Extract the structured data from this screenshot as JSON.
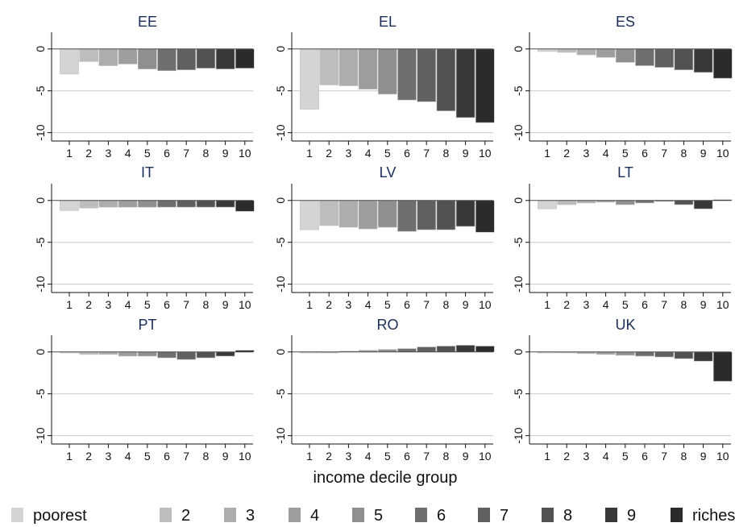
{
  "chart_data": {
    "type": "bar",
    "xlabel": "income decile group",
    "ylim": [
      -11,
      2
    ],
    "yticks": [
      0,
      -5,
      -10
    ],
    "categories": [
      "1",
      "2",
      "3",
      "4",
      "5",
      "6",
      "7",
      "8",
      "9",
      "10"
    ],
    "grid": true,
    "legend_position": "bottom",
    "legend": [
      "poorest",
      "2",
      "3",
      "4",
      "5",
      "6",
      "7",
      "8",
      "9",
      "richest"
    ],
    "colors": [
      "#d4d4d4",
      "#bdbdbd",
      "#adadad",
      "#9e9e9e",
      "#8f8f8f",
      "#6f6f6f",
      "#606060",
      "#525252",
      "#383838",
      "#2b2b2b"
    ],
    "panels": [
      {
        "title": "EE",
        "values": [
          -3.0,
          -1.5,
          -2.0,
          -1.8,
          -2.4,
          -2.6,
          -2.5,
          -2.3,
          -2.4,
          -2.3
        ]
      },
      {
        "title": "EL",
        "values": [
          -7.2,
          -4.3,
          -4.4,
          -4.8,
          -5.4,
          -6.1,
          -6.3,
          -7.4,
          -8.2,
          -8.8
        ]
      },
      {
        "title": "ES",
        "values": [
          -0.3,
          -0.4,
          -0.7,
          -1.0,
          -1.6,
          -2.0,
          -2.2,
          -2.5,
          -2.8,
          -3.5
        ]
      },
      {
        "title": "IT",
        "values": [
          -1.2,
          -0.9,
          -0.8,
          -0.8,
          -0.8,
          -0.8,
          -0.8,
          -0.8,
          -0.8,
          -1.3
        ]
      },
      {
        "title": "LV",
        "values": [
          -3.5,
          -3.0,
          -3.2,
          -3.4,
          -3.2,
          -3.7,
          -3.5,
          -3.5,
          -3.1,
          -3.8
        ]
      },
      {
        "title": "LT",
        "values": [
          -1.0,
          -0.5,
          -0.3,
          -0.2,
          -0.5,
          -0.3,
          -0.1,
          -0.5,
          -1.0,
          0.1
        ]
      },
      {
        "title": "PT",
        "values": [
          0.0,
          -0.3,
          -0.3,
          -0.5,
          -0.5,
          -0.7,
          -0.9,
          -0.7,
          -0.5,
          0.2
        ]
      },
      {
        "title": "RO",
        "values": [
          0.0,
          0.0,
          0.1,
          0.2,
          0.3,
          0.4,
          0.6,
          0.7,
          0.8,
          0.7
        ]
      },
      {
        "title": "UK",
        "values": [
          0.0,
          -0.1,
          -0.2,
          -0.3,
          -0.4,
          -0.5,
          -0.6,
          -0.8,
          -1.1,
          -3.5
        ]
      }
    ]
  }
}
